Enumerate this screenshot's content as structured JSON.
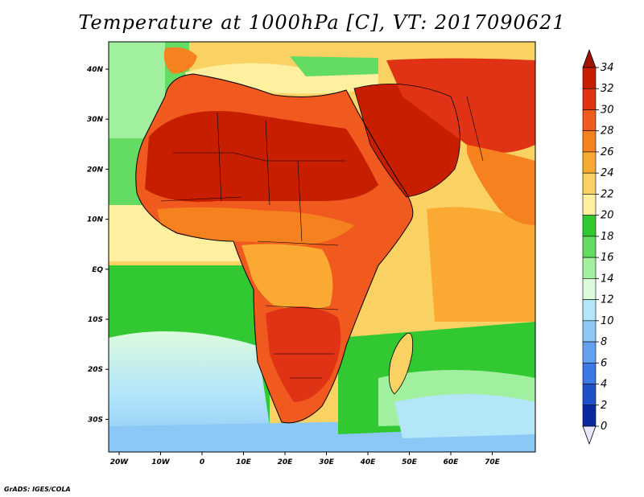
{
  "title": "Temperature at 1000hPa [C], VT: 2017090621",
  "credit": "GrADS: IGES/COLA",
  "axes": {
    "x_ticks": [
      "20W",
      "10W",
      "0",
      "10E",
      "20E",
      "30E",
      "40E",
      "50E",
      "60E",
      "70E"
    ],
    "y_ticks": [
      "40N",
      "30N",
      "20N",
      "10N",
      "EQ",
      "10S",
      "20S",
      "30S"
    ]
  },
  "colorbar": {
    "labels": [
      "34",
      "32",
      "30",
      "28",
      "26",
      "24",
      "22",
      "20",
      "18",
      "16",
      "14",
      "12",
      "10",
      "8",
      "6",
      "4",
      "2",
      "0"
    ],
    "colors": [
      "#c81e00",
      "#e03214",
      "#f05a1e",
      "#f5821e",
      "#faaa32",
      "#fad264",
      "#fff0a0",
      "#32c832",
      "#64dc64",
      "#a0f0a0",
      "#dcfadc",
      "#b4e6fa",
      "#8cc8f5",
      "#64a0f0",
      "#3c78e6",
      "#1e50c8",
      "#0a28a0",
      "#000a64"
    ],
    "over_color": "#a01400",
    "under_color": "#e6e6ff"
  },
  "colors": {
    "sea_atlantic_north": "#64dc64",
    "sea_tropical": "#fad264",
    "sea_south_cool": "#b4e6fa",
    "sea_south_cold": "#8cc8f5",
    "sahara_hot": "#c81e00",
    "land_warm": "#f05a1e",
    "land_mild": "#faaa32"
  }
}
